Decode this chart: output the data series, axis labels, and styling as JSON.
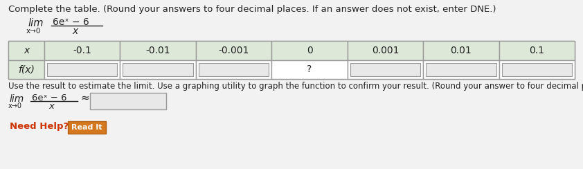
{
  "title_text": "Complete the table. (Round your answers to four decimal places. If an answer does not exist, enter DNE.)",
  "limit_label": "lim",
  "limit_subscript": "x→0",
  "limit_numerator": "6eˣ − 6",
  "limit_denominator": "x",
  "x_values": [
    "-0.1",
    "-0.01",
    "-0.001",
    "0",
    "0.001",
    "0.01",
    "0.1"
  ],
  "fx_label": "f(x)",
  "zero_cell_content": "?",
  "bottom_text": "Use the result to estimate the limit. Use a graphing utility to graph the function to confirm your result. (Round your answer to four decimal places.)",
  "need_help_text": "Need Help?",
  "read_it_text": "Read It",
  "bg_color": "#f2f2f2",
  "table_header_bg": "#dde8d8",
  "table_data_bg": "#ffffff",
  "border_color": "#999999",
  "text_color": "#222222",
  "red_text_color": "#cc3300",
  "title_fontsize": 9.5,
  "limit_fontsize": 10.5,
  "table_fontsize": 10,
  "input_box_color": "#e8e8e8",
  "read_it_bg": "#d47820",
  "read_it_text_color": "#ffffff",
  "need_help_color": "#cc3300",
  "approx_symbol": "≈"
}
